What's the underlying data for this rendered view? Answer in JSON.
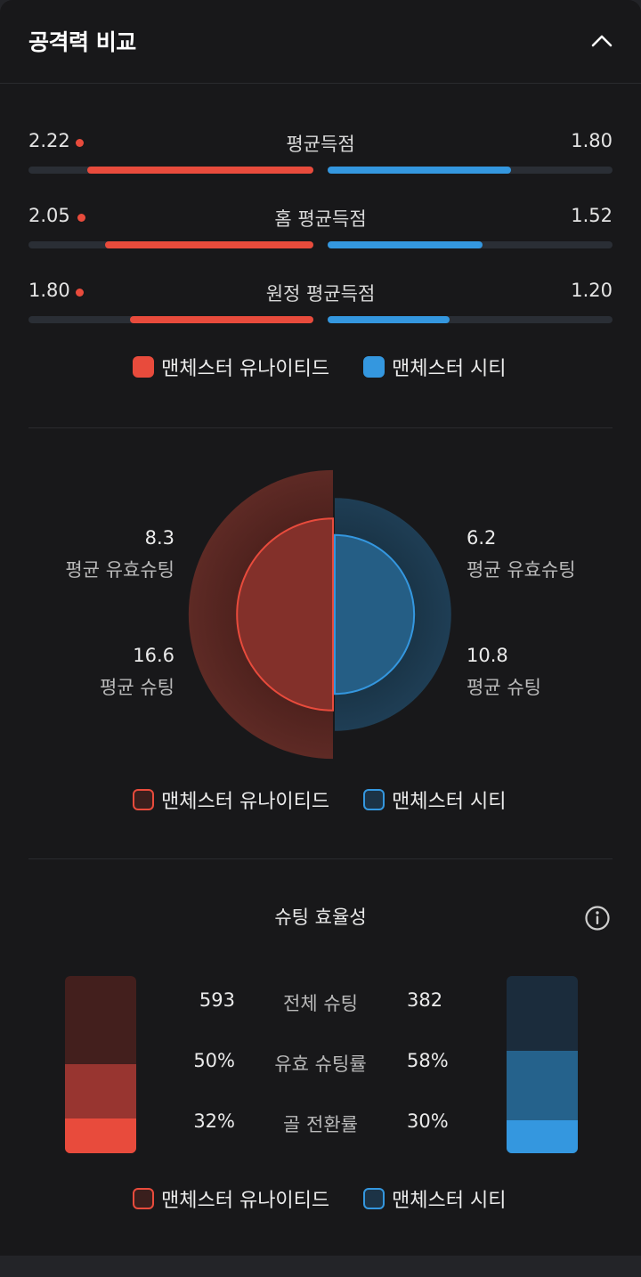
{
  "header": {
    "title": "공격력 비교"
  },
  "colors": {
    "red": "#e84b3c",
    "blue": "#3497df",
    "background": "#18181a",
    "track": "#2a2e35"
  },
  "icons": {
    "collapse": "chevron-up-icon",
    "info": "info-icon"
  },
  "teams": {
    "home": "맨체스터 유나이티드",
    "away": "맨체스터 시티"
  },
  "goals": [
    {
      "label": "평균득점",
      "home": "2.22",
      "away": "1.80",
      "home_value": 2.22,
      "away_value": 1.8
    },
    {
      "label": "홈 평균득점",
      "home": "2.05",
      "away": "1.52",
      "home_value": 2.05,
      "away_value": 1.52
    },
    {
      "label": "원정 평균득점",
      "home": "1.80",
      "away": "1.20",
      "home_value": 1.8,
      "away_value": 1.2
    }
  ],
  "shots": {
    "home_on_target": "8.3",
    "away_on_target": "6.2",
    "on_target_label": "평균 유효슈팅",
    "home_total": "16.6",
    "away_total": "10.8",
    "total_label": "평균 슈팅",
    "home_on_target_value": 8.3,
    "away_on_target_value": 6.2,
    "home_total_value": 16.6,
    "away_total_value": 10.8
  },
  "efficiency": {
    "title": "슈팅 효율성",
    "rows": [
      {
        "label": "전체 슈팅",
        "home": "593",
        "away": "382"
      },
      {
        "label": "유효 슈팅률",
        "home": "50%",
        "away": "58%"
      },
      {
        "label": "골 전환률",
        "home": "32%",
        "away": "30%"
      }
    ],
    "home_on_target_rate": 0.5,
    "home_conversion_rate": 0.32,
    "away_on_target_rate": 0.58,
    "away_conversion_rate": 0.3
  }
}
